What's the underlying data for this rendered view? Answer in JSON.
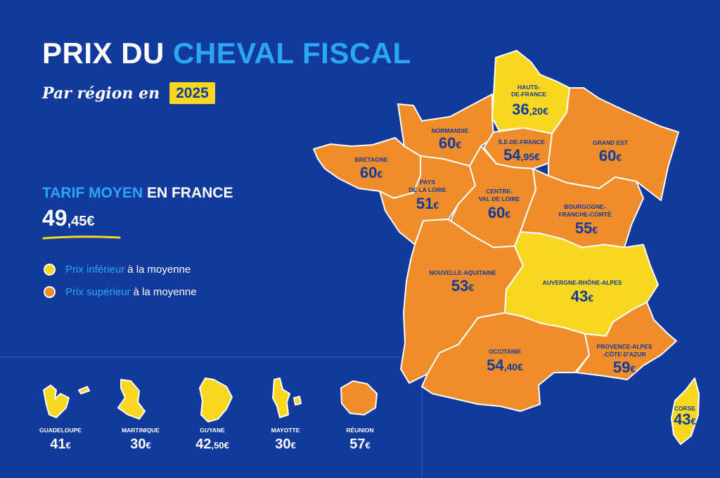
{
  "header": {
    "title_part1": "PRIX DU",
    "title_part2": "CHEVAL FISCAL",
    "subtitle": "Par région en",
    "year": "2025"
  },
  "average": {
    "label_part1": "TARIF MOYEN",
    "label_part2": "EN FRANCE",
    "value_int": "49",
    "value_dec": ",45€"
  },
  "legend": {
    "below": {
      "hl": "Prix inférieur",
      "rest": "à la moyenne",
      "color": "#f8d81e"
    },
    "above": {
      "hl": "Prix supérieur",
      "rest": "à la moyenne",
      "color": "#ef8d2a"
    }
  },
  "colors": {
    "background": "#123a9c",
    "accent": "#2ba6f2",
    "below_avg": "#f8d81e",
    "above_avg": "#ef8d2a",
    "text_dark": "#123a9c"
  },
  "regions": {
    "hauts_de_france": {
      "name1": "HAUTS-",
      "name2": "DE-FRANCE",
      "val": "36",
      "dec": ",20€",
      "category": "below"
    },
    "normandie": {
      "name1": "NORMANDIE",
      "val": "60",
      "dec": "€",
      "category": "above"
    },
    "ile_de_france": {
      "name1": "ÎLE-DE-FRANCE",
      "val": "54",
      "dec": ",95€",
      "category": "above"
    },
    "grand_est": {
      "name1": "GRAND EST",
      "val": "60",
      "dec": "€",
      "category": "above"
    },
    "bretagne": {
      "name1": "BRETAGNE",
      "val": "60",
      "dec": "€",
      "category": "above"
    },
    "pays_de_la_loire": {
      "name1": "PAYS",
      "name2": "DE LA LOIRE",
      "val": "51",
      "dec": "€",
      "category": "above"
    },
    "centre_val_de_loire": {
      "name1": "CENTRE-",
      "name2": "VAL DE LOIRE",
      "val": "60",
      "dec": "€",
      "category": "above"
    },
    "bourgogne_franche_comte": {
      "name1": "BOURGOGNE-",
      "name2": "FRANCHE-COMTÉ",
      "val": "55",
      "dec": "€",
      "category": "above"
    },
    "nouvelle_aquitaine": {
      "name1": "NOUVELLE-AQUITAINE",
      "val": "53",
      "dec": "€",
      "category": "above"
    },
    "auvergne_rhone_alpes": {
      "name1": "AUVERGNE-RHÔNE-ALPES",
      "val": "43",
      "dec": "€",
      "category": "below"
    },
    "occitanie": {
      "name1": "OCCITANIE",
      "val": "54",
      "dec": ",40€",
      "category": "above"
    },
    "provence_alpes_cote_dazur": {
      "name1": "PROVENCE-ALPES",
      "name2": "-CÔTE-D'AZUR",
      "val": "59",
      "dec": "€",
      "category": "above"
    },
    "corse": {
      "name1": "CORSE",
      "val": "43",
      "dec": "€",
      "category": "below"
    }
  },
  "overseas": {
    "guadeloupe": {
      "name": "GUADELOUPE",
      "val": "41",
      "dec": "€",
      "category": "below"
    },
    "martinique": {
      "name": "MARTINIQUE",
      "val": "30",
      "dec": "€",
      "category": "below"
    },
    "guyane": {
      "name": "GUYANE",
      "val": "42",
      "dec": ",50€",
      "category": "below"
    },
    "mayotte": {
      "name": "MAYOTTE",
      "val": "30",
      "dec": "€",
      "category": "below"
    },
    "reunion": {
      "name": "RÉUNION",
      "val": "57",
      "dec": "€",
      "category": "above"
    }
  }
}
